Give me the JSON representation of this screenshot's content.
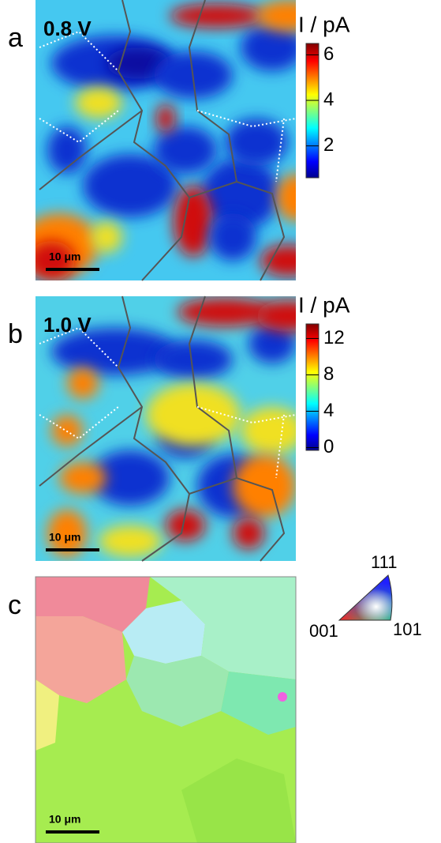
{
  "panels": [
    {
      "label": "a",
      "voltage": "0.8 V",
      "colorbar": {
        "title": "I / pA",
        "ylim": [
          0.6,
          6.5
        ],
        "yticks": [
          2,
          4,
          6
        ]
      },
      "scale_bar": "10 μm"
    },
    {
      "label": "b",
      "voltage": "1.0 V",
      "colorbar": {
        "title": "I / pA",
        "ylim": [
          -0.3,
          13.6
        ],
        "yticks": [
          0,
          4,
          8,
          12
        ]
      },
      "scale_bar": "10 μm"
    },
    {
      "label": "c",
      "scale_bar": "10 μm",
      "ipf": {
        "top": "111",
        "left": "001",
        "right": "101"
      }
    }
  ]
}
